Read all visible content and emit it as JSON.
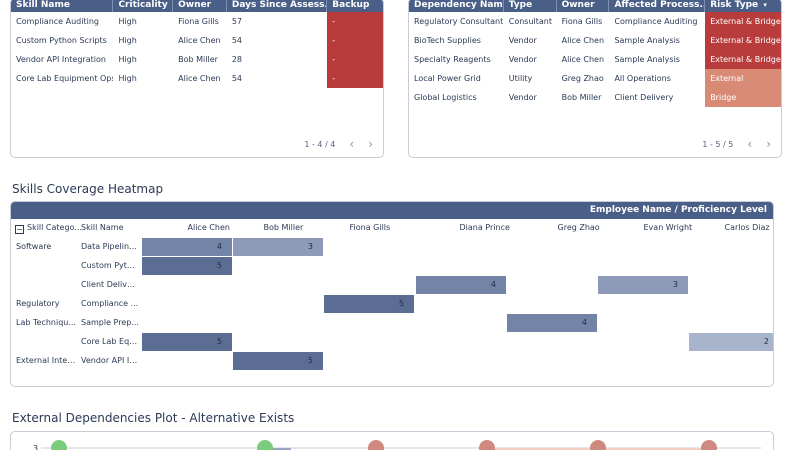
{
  "skills_table": {
    "headers": [
      "Skill Name",
      "Criticality",
      "Owner",
      "Days Since Assess...",
      "Backup"
    ],
    "rows": [
      {
        "skill": "Compliance Auditing",
        "criticality": "High",
        "owner": "Fiona Gills",
        "days": "57",
        "backup": "-"
      },
      {
        "skill": "Custom Python Scripts",
        "criticality": "High",
        "owner": "Alice Chen",
        "days": "54",
        "backup": "-"
      },
      {
        "skill": "Vendor API Integration",
        "criticality": "High",
        "owner": "Bob Miller",
        "days": "28",
        "backup": "-"
      },
      {
        "skill": "Core Lab Equipment Ops",
        "criticality": "High",
        "owner": "Alice Chen",
        "days": "54",
        "backup": "-"
      }
    ],
    "pager_text": "1 - 4 / 4"
  },
  "deps_table": {
    "headers": [
      "Dependency Name",
      "Type",
      "Owner",
      "Affected Process...",
      "Risk Type"
    ],
    "sort_glyph": "▾",
    "rows": [
      {
        "name": "Regulatory Consultant",
        "type": "Consultant",
        "owner": "Fiona Gills",
        "process": "Compliance Auditing",
        "risk": "External & Bridge",
        "level": "high"
      },
      {
        "name": "BioTech Supplies",
        "type": "Vendor",
        "owner": "Alice Chen",
        "process": "Sample Analysis",
        "risk": "External & Bridge",
        "level": "high"
      },
      {
        "name": "Specialty Reagents",
        "type": "Vendor",
        "owner": "Alice Chen",
        "process": "Sample Analysis",
        "risk": "External & Bridge",
        "level": "high"
      },
      {
        "name": "Local Power Grid",
        "type": "Utility",
        "owner": "Greg Zhao",
        "process": "All Operations",
        "risk": "External",
        "level": "medium"
      },
      {
        "name": "Global Logistics",
        "type": "Vendor",
        "owner": "Bob Miller",
        "process": "Client Delivery",
        "risk": "Bridge",
        "level": "medium"
      }
    ],
    "pager_text": "1 - 5 / 5"
  },
  "heatmap": {
    "title": "Skills Coverage Heatmap",
    "header": "Employee Name / Proficiency Level",
    "collapse_glyph": "−",
    "row_headers": [
      "Skill Catego...",
      "Skill Name"
    ],
    "employees": [
      "Alice Chen",
      "Bob Miller",
      "Fiona Gills",
      "Diana Prince",
      "Greg Zhao",
      "Evan Wright",
      "Carlos Diaz"
    ],
    "rows": [
      {
        "category": "Software",
        "skill": "Data Pipeline..."
      },
      {
        "category": "",
        "skill": "Custom Pyth..."
      },
      {
        "category": "",
        "skill": "Client Deliver..."
      },
      {
        "category": "Regulatory",
        "skill": "Compliance ..."
      },
      {
        "category": "Lab Techniqu...",
        "skill": "Sample Prep..."
      },
      {
        "category": "",
        "skill": "Core Lab Equ..."
      },
      {
        "category": "External Inter...",
        "skill": "Vendor API In..."
      }
    ],
    "cells": [
      {
        "row": 0,
        "col": 0,
        "value": "4",
        "level": 4
      },
      {
        "row": 0,
        "col": 1,
        "value": "3",
        "level": 3
      },
      {
        "row": 1,
        "col": 0,
        "value": "5",
        "level": 5
      },
      {
        "row": 2,
        "col": 3,
        "value": "4",
        "level": 4
      },
      {
        "row": 2,
        "col": 5,
        "value": "3",
        "level": 3
      },
      {
        "row": 3,
        "col": 2,
        "value": "5",
        "level": 5
      },
      {
        "row": 4,
        "col": 4,
        "value": "4",
        "level": 4
      },
      {
        "row": 5,
        "col": 0,
        "value": "5",
        "level": 5
      },
      {
        "row": 5,
        "col": 6,
        "value": "2",
        "level": 2
      },
      {
        "row": 6,
        "col": 1,
        "value": "5",
        "level": 5
      }
    ]
  },
  "plot": {
    "title": "External Dependencies Plot - Alternative Exists",
    "y_tick": "3",
    "points": [
      {
        "slot": 0,
        "status": "yes"
      },
      {
        "slot": 1,
        "status": "yes"
      },
      {
        "slot": 2,
        "status": "no"
      },
      {
        "slot": 3,
        "status": "no"
      },
      {
        "slot": 4,
        "status": "no"
      },
      {
        "slot": 5,
        "status": "no"
      }
    ]
  },
  "colors": {
    "header": "#4a5f87",
    "risk_high": "#b83c3c",
    "risk_medium": "#d98a75",
    "heat_5": "#5b6d93",
    "heat_4": "#7384a6",
    "heat_3": "#8d9bb8",
    "heat_2": "#a8b4cc",
    "dot_yes": "#7ccb7c",
    "dot_no": "#cf8a80"
  }
}
